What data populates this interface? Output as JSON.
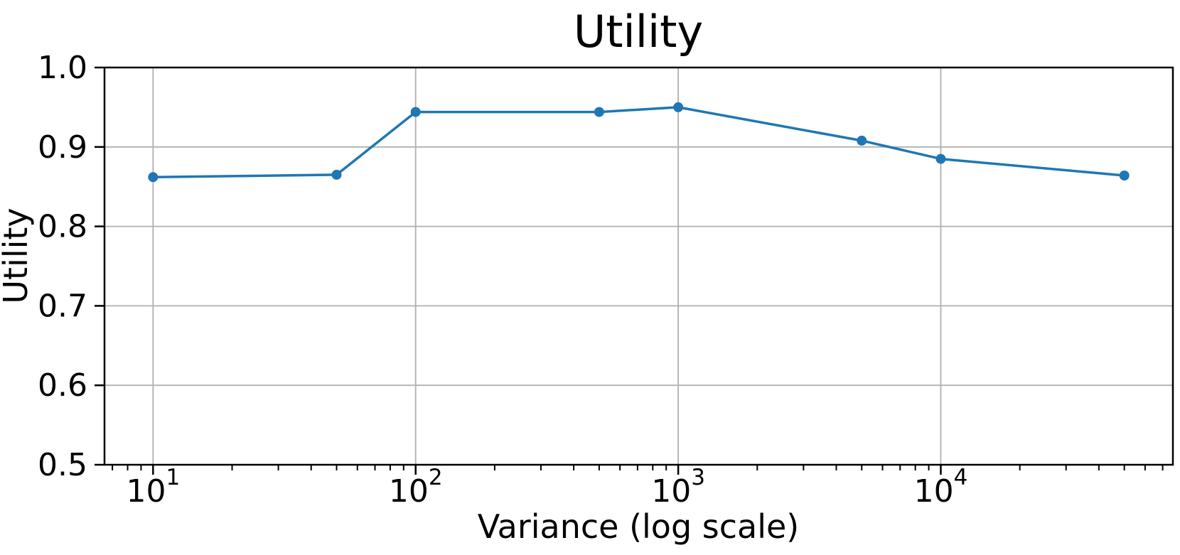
{
  "figure": {
    "background": "#ffffff"
  },
  "chart_data": {
    "type": "line",
    "title": "Utility",
    "xlabel": "Variance (log scale)",
    "ylabel": "Utility",
    "x_scale": "log",
    "grid": true,
    "legend": "none",
    "series": [
      {
        "name": "Utility",
        "x": [
          10,
          50,
          100,
          500,
          1000,
          5000,
          10000,
          50000
        ],
        "y": [
          0.862,
          0.865,
          0.944,
          0.944,
          0.95,
          0.908,
          0.885,
          0.864
        ]
      }
    ],
    "ylim": [
      0.5,
      1.0
    ],
    "xlim_log10": [
      0.815,
      4.884
    ],
    "y_ticks": [
      0.5,
      0.6,
      0.7,
      0.8,
      0.9,
      1.0
    ],
    "y_tick_labels": [
      "0.5",
      "0.6",
      "0.7",
      "0.8",
      "0.9",
      "1.0"
    ],
    "x_tick_values": [
      10,
      100,
      1000,
      10000
    ],
    "x_tick_labels": [
      {
        "base": "10",
        "exp": "1"
      },
      {
        "base": "10",
        "exp": "2"
      },
      {
        "base": "10",
        "exp": "3"
      },
      {
        "base": "10",
        "exp": "4"
      }
    ],
    "colors": {
      "line": "#1f77b4",
      "marker": "#1f77b4",
      "grid": "#b0b0b0",
      "spine": "#000000",
      "text": "#000000"
    }
  }
}
